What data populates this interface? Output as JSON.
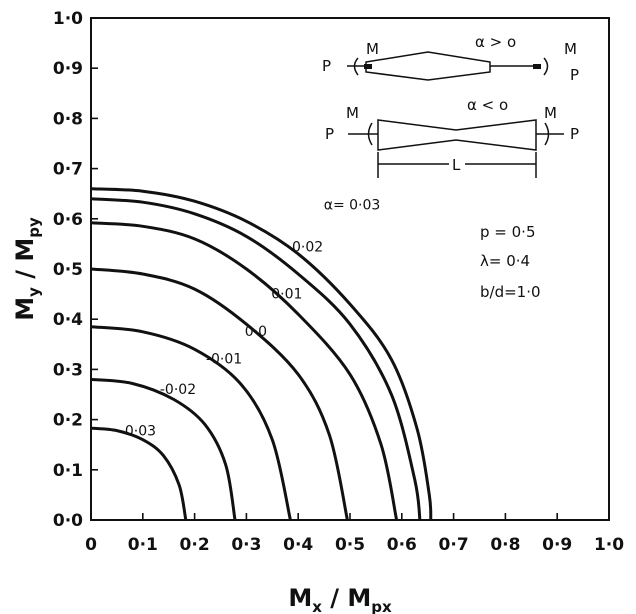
{
  "chart_data": {
    "type": "line",
    "xlabel": "M_x / M_px",
    "ylabel": "M_y / M_py",
    "xlim": [
      0,
      1.0
    ],
    "ylim": [
      0,
      1.0
    ],
    "x_ticks": [
      "0",
      "0·1",
      "0·2",
      "0·3",
      "0·4",
      "0·5",
      "0·6",
      "0·7",
      "0·8",
      "0·9",
      "1·0"
    ],
    "y_ticks": [
      "0·0",
      "0·1",
      "0·2",
      "0·3",
      "0·4",
      "0·5",
      "0·6",
      "0·7",
      "0·8",
      "0·9",
      "1·0"
    ],
    "grid": false,
    "series": [
      {
        "name": "-0·03",
        "label_text": "-0·03",
        "points": [
          [
            0,
            0.183
          ],
          [
            0.05,
            0.178
          ],
          [
            0.1,
            0.16
          ],
          [
            0.14,
            0.128
          ],
          [
            0.17,
            0.07
          ],
          [
            0.183,
            0.0
          ]
        ]
      },
      {
        "name": "-0·02",
        "label_text": "-0·02",
        "points": [
          [
            0,
            0.28
          ],
          [
            0.08,
            0.272
          ],
          [
            0.16,
            0.24
          ],
          [
            0.22,
            0.19
          ],
          [
            0.26,
            0.11
          ],
          [
            0.278,
            0.0
          ]
        ]
      },
      {
        "name": "-0·01",
        "label_text": "-0·01",
        "points": [
          [
            0,
            0.385
          ],
          [
            0.1,
            0.375
          ],
          [
            0.2,
            0.34
          ],
          [
            0.29,
            0.27
          ],
          [
            0.35,
            0.16
          ],
          [
            0.385,
            0.0
          ]
        ]
      },
      {
        "name": "0·0",
        "label_text": "0·0",
        "points": [
          [
            0,
            0.5
          ],
          [
            0.1,
            0.49
          ],
          [
            0.2,
            0.46
          ],
          [
            0.3,
            0.39
          ],
          [
            0.4,
            0.29
          ],
          [
            0.46,
            0.17
          ],
          [
            0.495,
            0.0
          ]
        ]
      },
      {
        "name": "0·01",
        "label_text": "0·01",
        "points": [
          [
            0,
            0.592
          ],
          [
            0.1,
            0.585
          ],
          [
            0.2,
            0.56
          ],
          [
            0.3,
            0.5
          ],
          [
            0.4,
            0.41
          ],
          [
            0.5,
            0.29
          ],
          [
            0.56,
            0.15
          ],
          [
            0.59,
            0.0
          ]
        ]
      },
      {
        "name": "0·02",
        "label_text": "0·02",
        "points": [
          [
            0,
            0.64
          ],
          [
            0.1,
            0.633
          ],
          [
            0.2,
            0.61
          ],
          [
            0.3,
            0.565
          ],
          [
            0.4,
            0.49
          ],
          [
            0.5,
            0.39
          ],
          [
            0.58,
            0.25
          ],
          [
            0.625,
            0.08
          ],
          [
            0.635,
            0.0
          ]
        ]
      },
      {
        "name": "0·03",
        "label_text": "α= 0·03",
        "points": [
          [
            0,
            0.66
          ],
          [
            0.1,
            0.655
          ],
          [
            0.2,
            0.635
          ],
          [
            0.3,
            0.595
          ],
          [
            0.4,
            0.53
          ],
          [
            0.5,
            0.43
          ],
          [
            0.58,
            0.32
          ],
          [
            0.63,
            0.18
          ],
          [
            0.653,
            0.05
          ],
          [
            0.656,
            0.0
          ]
        ]
      }
    ],
    "parameters": [
      "p  = 0·5",
      "λ= 0·4",
      "b/d=1·0"
    ],
    "inset": {
      "top_label": "α > o",
      "bottom_label": "α < o",
      "moment_label": "M",
      "axial_label": "P",
      "length_label": "L"
    }
  }
}
